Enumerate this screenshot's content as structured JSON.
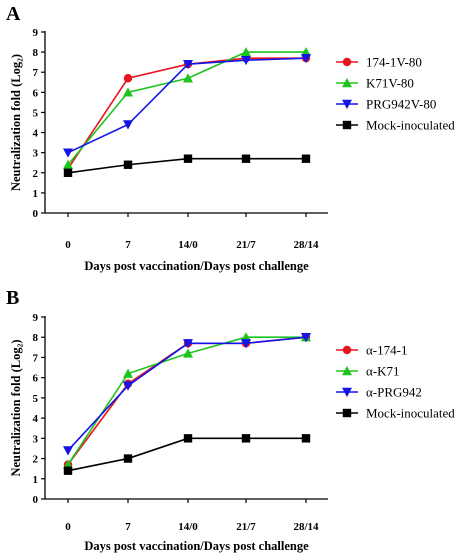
{
  "chart_data": [
    {
      "type": "line",
      "panel_label": "A",
      "xlabel": "Days post vaccination/Days post challenge",
      "ylabel": "Neutralization fold (Log₂)",
      "categories": [
        "0",
        "7",
        "14/0",
        "21/7",
        "28/14"
      ],
      "ylim": [
        0,
        9
      ],
      "yticks": [
        "0",
        "1",
        "2",
        "3",
        "4",
        "5",
        "6",
        "7",
        "8",
        "9"
      ],
      "legend_position": "right",
      "series": [
        {
          "name": "174-1V-80",
          "color": "#e8141e",
          "marker": "circle",
          "values": [
            2.2,
            6.7,
            7.4,
            7.7,
            7.7
          ]
        },
        {
          "name": "K71V-80",
          "color": "#1ec41e",
          "marker": "triangle-up",
          "values": [
            2.4,
            6.0,
            6.7,
            8.0,
            8.0
          ]
        },
        {
          "name": "PRG942V-80",
          "color": "#1414e6",
          "marker": "triangle-down",
          "values": [
            3.0,
            4.4,
            7.4,
            7.6,
            7.7
          ]
        },
        {
          "name": "Mock-inoculated",
          "color": "#000000",
          "marker": "square",
          "values": [
            2.0,
            2.4,
            2.7,
            2.7,
            2.7
          ]
        }
      ]
    },
    {
      "type": "line",
      "panel_label": "B",
      "xlabel": "Days post vaccination/Days post challenge",
      "ylabel": "Neutralization fold (Log₂)",
      "categories": [
        "0",
        "7",
        "14/0",
        "21/7",
        "28/14"
      ],
      "ylim": [
        0,
        9
      ],
      "yticks": [
        "0",
        "1",
        "2",
        "3",
        "4",
        "5",
        "6",
        "7",
        "8",
        "9"
      ],
      "legend_position": "right",
      "series": [
        {
          "name": "α-174-1",
          "color": "#e8141e",
          "marker": "circle",
          "values": [
            1.7,
            5.7,
            7.7,
            7.7,
            8.0
          ]
        },
        {
          "name": "α-K71",
          "color": "#1ec41e",
          "marker": "triangle-up",
          "values": [
            1.7,
            6.2,
            7.2,
            8.0,
            8.0
          ]
        },
        {
          "name": "α-PRG942",
          "color": "#1414e6",
          "marker": "triangle-down",
          "values": [
            2.4,
            5.6,
            7.7,
            7.7,
            8.0
          ]
        },
        {
          "name": "Mock-inoculated",
          "color": "#000000",
          "marker": "square",
          "values": [
            1.4,
            2.0,
            3.0,
            3.0,
            3.0
          ]
        }
      ]
    }
  ]
}
